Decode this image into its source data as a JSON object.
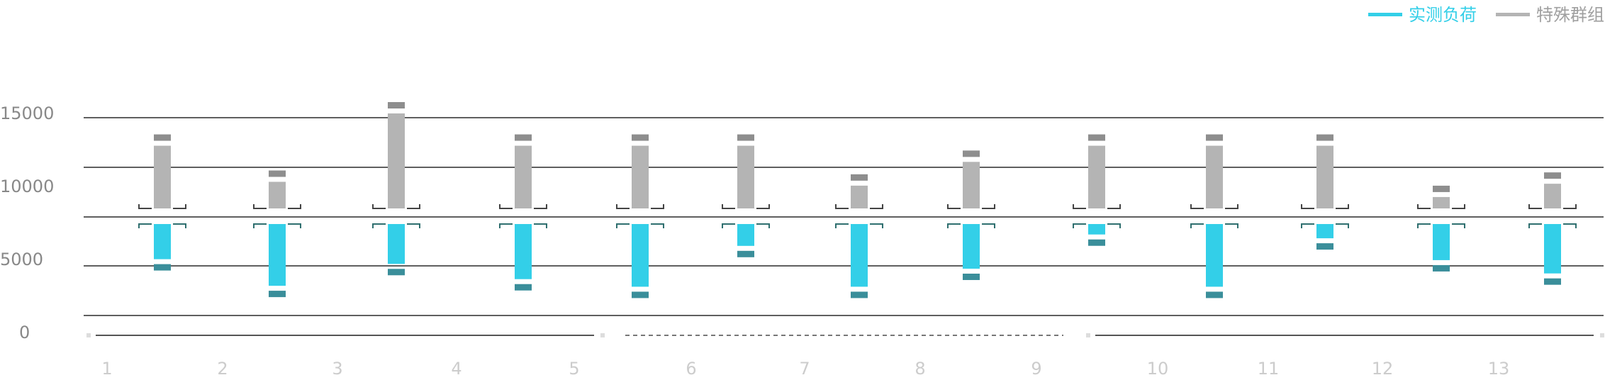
{
  "chart_data": {
    "type": "bar",
    "legend": {
      "position": "top-right",
      "items": [
        {
          "label": "实测负荷",
          "color": "#33cfe8"
        },
        {
          "label": "特殊群组",
          "color": "#b4b4b4"
        }
      ]
    },
    "y_ticks": [
      "15000",
      "10000",
      "5000",
      "0"
    ],
    "x_ticks": [
      "1",
      "2",
      "3",
      "4",
      "5",
      "6",
      "7",
      "8",
      "9",
      "10",
      "11",
      "12",
      "13"
    ],
    "grid": true,
    "series": [
      {
        "name": "实测负荷",
        "color": "#33cfe8",
        "marker_color": "#3a8e9a",
        "values": [
          3700,
          6500,
          4200,
          5800,
          6600,
          2300,
          6600,
          4700,
          1100,
          6600,
          1500,
          3800,
          5200
        ]
      },
      {
        "name": "特殊群组",
        "color": "#b4b4b4",
        "marker_color": "#8e8e8e",
        "values": [
          6600,
          2800,
          10000,
          6600,
          6600,
          6600,
          2400,
          4900,
          6600,
          6600,
          6600,
          1200,
          2600
        ]
      }
    ],
    "baseline_style": [
      "solid",
      "solid",
      "solid",
      "solid",
      "dashed",
      "dashed",
      "dashed",
      "dashed",
      "solid",
      "solid",
      "solid",
      "solid",
      "solid"
    ]
  }
}
